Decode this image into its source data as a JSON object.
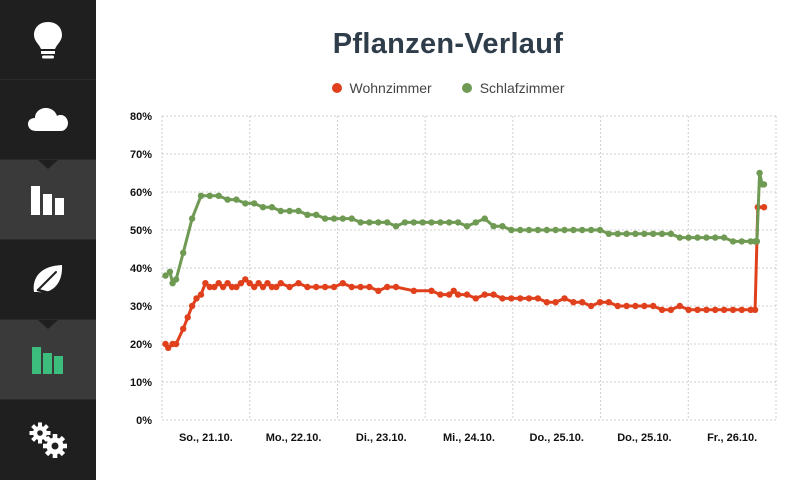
{
  "sidebar": {
    "items": [
      {
        "icon": "lightbulb-icon",
        "active": false
      },
      {
        "icon": "cloud-icon",
        "active": false
      },
      {
        "icon": "bar-chart-icon",
        "active": true
      },
      {
        "icon": "leaf-icon",
        "active": false
      },
      {
        "icon": "bar-chart-green-icon",
        "active": true
      },
      {
        "icon": "gears-icon",
        "active": false
      }
    ]
  },
  "colors": {
    "sidebar_bg": "#1f1f1f",
    "sidebar_active": "#3a3a3a",
    "accent_green": "#3dbd7d",
    "wohnzimmer": "#e0401c",
    "schlafzimmer": "#6f9a53"
  },
  "chart_data": {
    "type": "line",
    "title": "Pflanzen-Verlauf",
    "categories": [
      "So., 21.10.",
      "Mo., 22.10.",
      "Di., 23.10.",
      "Mi., 24.10.",
      "Do., 25.10.",
      "Do., 25.10.",
      "Fr., 26.10."
    ],
    "ylim": [
      0,
      80
    ],
    "yticks": [
      "0%",
      "10%",
      "20%",
      "30%",
      "40%",
      "50%",
      "60%",
      "70%",
      "80%"
    ],
    "grid": true,
    "legend": "top-center",
    "series": [
      {
        "name": "Wohnzimmer",
        "color": "#e0401c",
        "x": [
          0.0,
          0.03,
          0.08,
          0.12,
          0.2,
          0.25,
          0.3,
          0.35,
          0.4,
          0.45,
          0.5,
          0.55,
          0.6,
          0.65,
          0.7,
          0.75,
          0.8,
          0.85,
          0.9,
          0.95,
          1.0,
          1.05,
          1.1,
          1.15,
          1.2,
          1.25,
          1.3,
          1.4,
          1.5,
          1.6,
          1.7,
          1.8,
          1.9,
          2.0,
          2.1,
          2.2,
          2.3,
          2.4,
          2.5,
          2.6,
          2.8,
          3.0,
          3.1,
          3.2,
          3.25,
          3.3,
          3.4,
          3.5,
          3.6,
          3.7,
          3.8,
          3.9,
          4.0,
          4.1,
          4.2,
          4.3,
          4.4,
          4.5,
          4.6,
          4.7,
          4.8,
          4.9,
          5.0,
          5.1,
          5.2,
          5.3,
          5.4,
          5.5,
          5.6,
          5.7,
          5.8,
          5.9,
          6.0,
          6.1,
          6.2,
          6.3,
          6.4,
          6.5,
          6.6,
          6.65,
          6.68,
          6.75
        ],
        "values": [
          20,
          19,
          20,
          20,
          24,
          27,
          30,
          32,
          33,
          36,
          35,
          35,
          36,
          35,
          36,
          35,
          35,
          36,
          37,
          36,
          35,
          36,
          35,
          36,
          35,
          35,
          36,
          35,
          36,
          35,
          35,
          35,
          35,
          36,
          35,
          35,
          35,
          34,
          35,
          35,
          34,
          34,
          33,
          33,
          34,
          33,
          33,
          32,
          33,
          33,
          32,
          32,
          32,
          32,
          32,
          31,
          31,
          32,
          31,
          31,
          30,
          31,
          31,
          30,
          30,
          30,
          30,
          30,
          29,
          29,
          30,
          29,
          29,
          29,
          29,
          29,
          29,
          29,
          29,
          29,
          56,
          56
        ]
      },
      {
        "name": "Schlafzimmer",
        "color": "#6f9a53",
        "x": [
          0.0,
          0.05,
          0.08,
          0.12,
          0.2,
          0.3,
          0.4,
          0.5,
          0.6,
          0.7,
          0.8,
          0.9,
          1.0,
          1.1,
          1.2,
          1.3,
          1.4,
          1.5,
          1.6,
          1.7,
          1.8,
          1.9,
          2.0,
          2.1,
          2.2,
          2.3,
          2.4,
          2.5,
          2.6,
          2.7,
          2.8,
          2.9,
          3.0,
          3.1,
          3.2,
          3.3,
          3.4,
          3.5,
          3.6,
          3.7,
          3.8,
          3.9,
          4.0,
          4.1,
          4.2,
          4.3,
          4.4,
          4.5,
          4.6,
          4.7,
          4.8,
          4.9,
          5.0,
          5.1,
          5.2,
          5.3,
          5.4,
          5.5,
          5.6,
          5.7,
          5.8,
          5.9,
          6.0,
          6.1,
          6.2,
          6.3,
          6.4,
          6.5,
          6.6,
          6.65,
          6.67,
          6.7,
          6.73,
          6.75
        ],
        "values": [
          38,
          39,
          36,
          37,
          44,
          53,
          59,
          59,
          59,
          58,
          58,
          57,
          57,
          56,
          56,
          55,
          55,
          55,
          54,
          54,
          53,
          53,
          53,
          53,
          52,
          52,
          52,
          52,
          51,
          52,
          52,
          52,
          52,
          52,
          52,
          52,
          51,
          52,
          53,
          51,
          51,
          50,
          50,
          50,
          50,
          50,
          50,
          50,
          50,
          50,
          50,
          50,
          49,
          49,
          49,
          49,
          49,
          49,
          49,
          49,
          48,
          48,
          48,
          48,
          48,
          48,
          47,
          47,
          47,
          47,
          47,
          65,
          62,
          62
        ]
      }
    ]
  }
}
